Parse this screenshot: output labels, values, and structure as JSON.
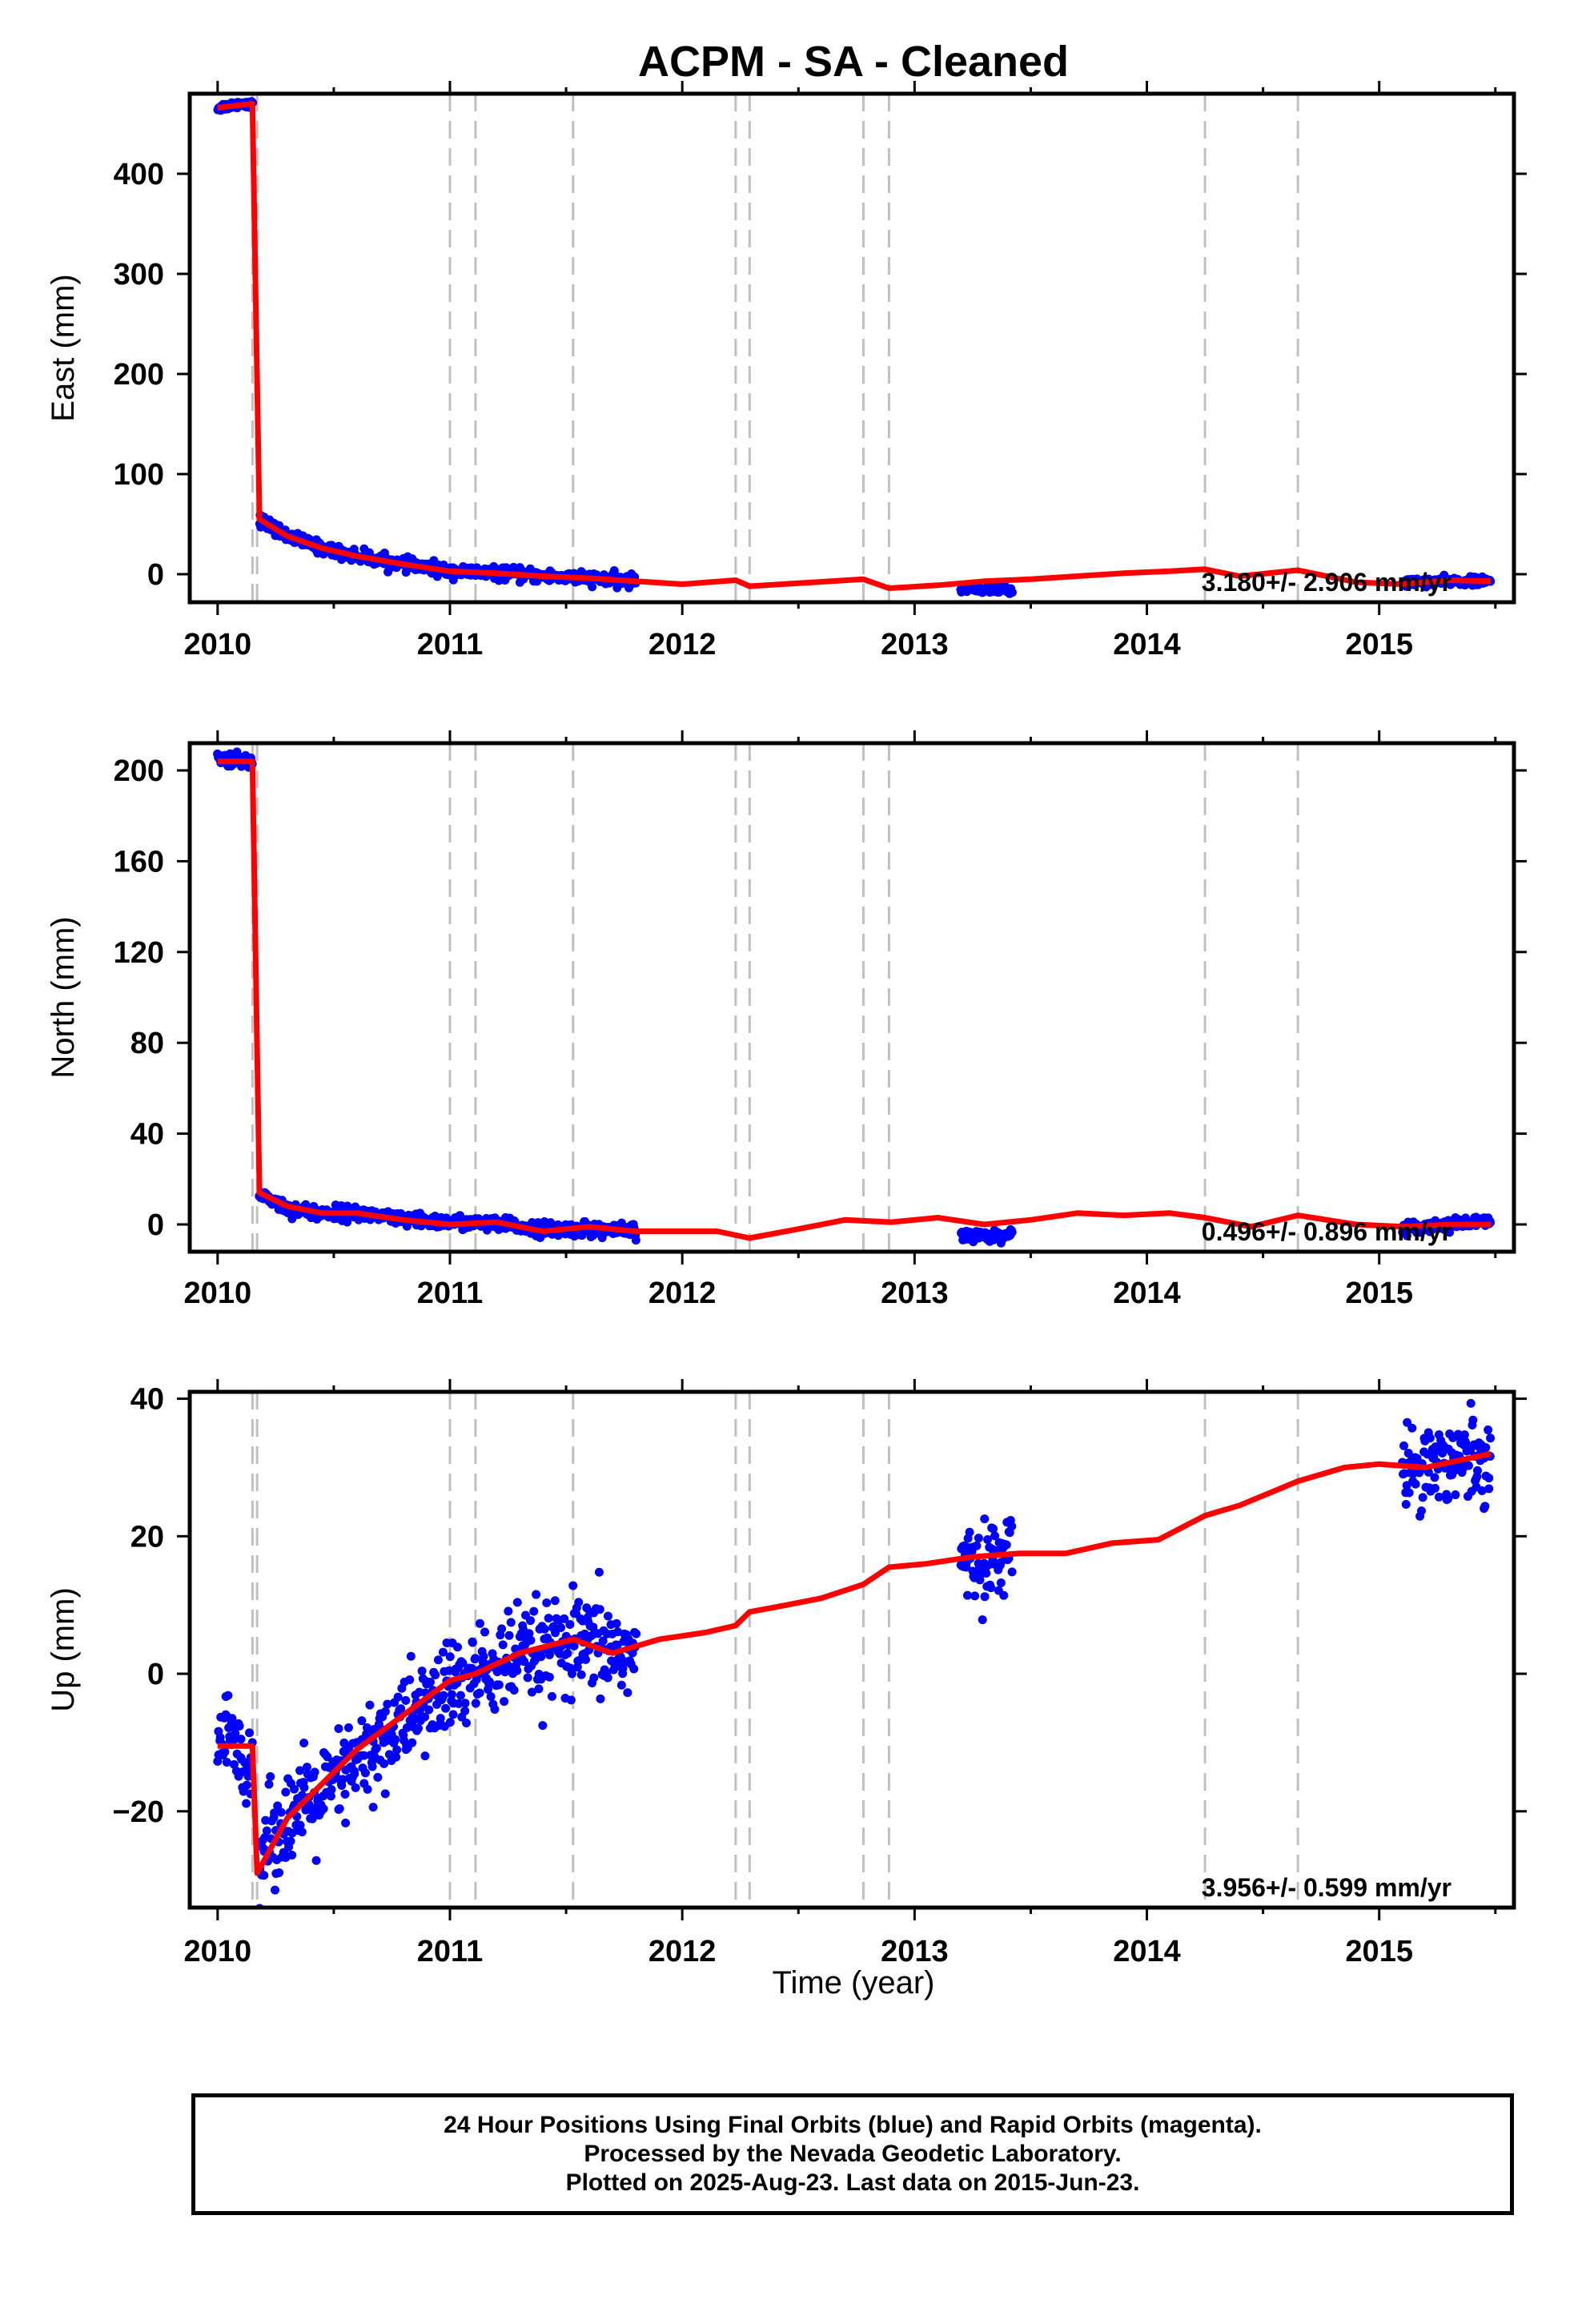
{
  "title": "ACPM  - SA - Cleaned",
  "colors": {
    "data": "#0000ff",
    "model": "#ff0000",
    "offset_line": "#c0c0c0",
    "frame": "#000000"
  },
  "offsets": [
    2010.15,
    2010.17,
    2011.0,
    2011.11,
    2011.53,
    2012.23,
    2012.29,
    2012.78,
    2012.89,
    2014.25,
    2014.65
  ],
  "footer": {
    "line1": "24 Hour Positions Using Final Orbits (blue) and Rapid Orbits (magenta).",
    "line2": "Processed by the Nevada Geodetic Laboratory.",
    "line3": "Plotted on 2025-Aug-23. Last data on 2015-Jun-23."
  },
  "chart_data": [
    {
      "type": "scatter",
      "id": "east",
      "ylabel": "East (mm)",
      "xlabel": "",
      "xlim": [
        2009.88,
        2015.58
      ],
      "ylim": [
        -28,
        480
      ],
      "xticks": [
        2010,
        2011,
        2012,
        2013,
        2014,
        2015
      ],
      "yticks": [
        0,
        100,
        200,
        300,
        400
      ],
      "rate_label": "3.180+/- 2.906 mm/yr",
      "data_segments": [
        {
          "x": [
            2010.0,
            2010.05,
            2010.1,
            2010.15
          ],
          "y": [
            466,
            468,
            470,
            470
          ],
          "noise": 2
        },
        {
          "x": [
            2010.18,
            2010.3,
            2010.45,
            2010.6,
            2010.8,
            2011.0,
            2011.2,
            2011.4,
            2011.6,
            2011.8
          ],
          "y": [
            55,
            38,
            26,
            18,
            10,
            3,
            1,
            -2,
            -4,
            -7
          ],
          "noise": 3
        },
        {
          "x": [
            2013.2,
            2013.28,
            2013.36,
            2013.42
          ],
          "y": [
            -14,
            -15,
            -15,
            -16
          ],
          "noise": 2
        },
        {
          "x": [
            2015.1,
            2015.2,
            2015.3,
            2015.42,
            2015.48
          ],
          "y": [
            -8,
            -8,
            -7,
            -7,
            -7
          ],
          "noise": 2
        }
      ],
      "model": {
        "x": [
          2010.0,
          2010.15,
          2010.18,
          2010.3,
          2010.45,
          2010.6,
          2010.8,
          2011.0,
          2011.2,
          2011.4,
          2011.6,
          2011.8,
          2012.0,
          2012.23,
          2012.29,
          2012.5,
          2012.78,
          2012.89,
          2013.1,
          2013.3,
          2013.5,
          2013.7,
          2013.9,
          2014.1,
          2014.25,
          2014.4,
          2014.65,
          2014.9,
          2015.1,
          2015.3,
          2015.48
        ],
        "y": [
          466,
          470,
          55,
          38,
          26,
          18,
          10,
          3,
          1,
          -2,
          -4,
          -7,
          -10,
          -6,
          -12,
          -9,
          -5,
          -14,
          -11,
          -7,
          -5,
          -2,
          1,
          3,
          5,
          -2,
          4,
          -8,
          -10,
          -6,
          -7
        ]
      }
    },
    {
      "type": "scatter",
      "id": "north",
      "ylabel": "North (mm)",
      "xlabel": "",
      "xlim": [
        2009.88,
        2015.58
      ],
      "ylim": [
        -12,
        212
      ],
      "xticks": [
        2010,
        2011,
        2012,
        2013,
        2014,
        2015
      ],
      "yticks": [
        0,
        40,
        80,
        120,
        160,
        200
      ],
      "rate_label": "0.496+/- 0.896 mm/yr",
      "data_segments": [
        {
          "x": [
            2010.0,
            2010.05,
            2010.1,
            2010.15
          ],
          "y": [
            205,
            205,
            204,
            204
          ],
          "noise": 1.5
        },
        {
          "x": [
            2010.18,
            2010.3,
            2010.45,
            2010.6,
            2010.8,
            2011.0,
            2011.2,
            2011.4,
            2011.6,
            2011.8
          ],
          "y": [
            14,
            7,
            5,
            5,
            2,
            1,
            0,
            -2,
            -2,
            -3
          ],
          "noise": 1.5
        },
        {
          "x": [
            2013.2,
            2013.28,
            2013.36,
            2013.42
          ],
          "y": [
            -5,
            -5,
            -5,
            -4
          ],
          "noise": 1.2
        },
        {
          "x": [
            2015.1,
            2015.2,
            2015.3,
            2015.42,
            2015.48
          ],
          "y": [
            -1,
            -1,
            0,
            1,
            1
          ],
          "noise": 1.2
        }
      ],
      "model": {
        "x": [
          2010.0,
          2010.15,
          2010.18,
          2010.3,
          2010.45,
          2010.6,
          2010.8,
          2011.0,
          2011.2,
          2011.4,
          2011.6,
          2011.8,
          2012.0,
          2012.15,
          2012.29,
          2012.5,
          2012.7,
          2012.9,
          2013.1,
          2013.3,
          2013.5,
          2013.7,
          2013.9,
          2014.1,
          2014.25,
          2014.45,
          2014.65,
          2014.9,
          2015.1,
          2015.3,
          2015.48
        ],
        "y": [
          204,
          204,
          14,
          8,
          5,
          5,
          2,
          0,
          1,
          -3,
          -1,
          -3,
          -3,
          -3,
          -6,
          -2,
          2,
          1,
          3,
          0,
          2,
          5,
          4,
          5,
          3,
          -1,
          4,
          0,
          -1,
          0,
          0
        ]
      }
    },
    {
      "type": "scatter",
      "id": "up",
      "ylabel": "Up (mm)",
      "xlabel": "Time (year)",
      "xlim": [
        2009.88,
        2015.58
      ],
      "ylim": [
        -34,
        41
      ],
      "xticks": [
        2010,
        2011,
        2012,
        2013,
        2014,
        2015
      ],
      "yticks": [
        -20,
        0,
        20,
        40
      ],
      "ytick_labels": [
        "−20",
        "0",
        "20",
        "40"
      ],
      "rate_label": "3.956+/- 0.599 mm/yr",
      "data_segments": [
        {
          "x": [
            2010.0,
            2010.05,
            2010.1,
            2010.15
          ],
          "y": [
            -10,
            -9,
            -12,
            -13
          ],
          "noise": 3
        },
        {
          "x": [
            2010.18,
            2010.3,
            2010.45,
            2010.6,
            2010.8,
            2011.0,
            2011.2,
            2011.4,
            2011.6,
            2011.8
          ],
          "y": [
            -26,
            -21,
            -18,
            -13,
            -7,
            -2,
            1,
            3,
            4,
            3
          ],
          "noise": 3.5
        },
        {
          "x": [
            2013.2,
            2013.28,
            2013.36,
            2013.42
          ],
          "y": [
            16,
            16,
            17,
            18
          ],
          "noise": 2.5
        },
        {
          "x": [
            2015.1,
            2015.2,
            2015.3,
            2015.42,
            2015.48
          ],
          "y": [
            30,
            31,
            31,
            32,
            32
          ],
          "noise": 3
        }
      ],
      "model": {
        "x": [
          2010.0,
          2010.15,
          2010.17,
          2010.3,
          2010.45,
          2010.6,
          2010.8,
          2011.0,
          2011.11,
          2011.3,
          2011.53,
          2011.7,
          2011.9,
          2012.1,
          2012.23,
          2012.29,
          2012.45,
          2012.6,
          2012.78,
          2012.89,
          2013.05,
          2013.25,
          2013.45,
          2013.65,
          2013.85,
          2014.05,
          2014.25,
          2014.4,
          2014.65,
          2014.85,
          2015.0,
          2015.2,
          2015.48
        ],
        "y": [
          -10.5,
          -10.5,
          -29,
          -21,
          -16,
          -11,
          -6,
          -1,
          0,
          3,
          5,
          3,
          5,
          6,
          7,
          9,
          10,
          11,
          13,
          15.5,
          16,
          17,
          17.5,
          17.5,
          19,
          19.5,
          23,
          24.5,
          28,
          30,
          30.5,
          30,
          32
        ]
      }
    }
  ]
}
